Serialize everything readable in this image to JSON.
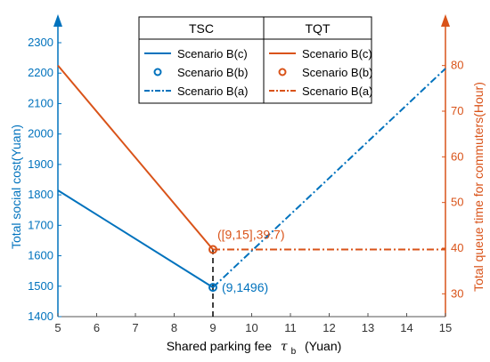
{
  "chart_data": {
    "type": "line",
    "xlabel": "Shared parking fee",
    "xlabel_symbol": "τ",
    "xlabel_sub": "b",
    "xlabel_unit": "(Yuan)",
    "ylabel_left": "Total social cost(Yuan)",
    "ylabel_right": "Total queue time for commuters(Hour)",
    "xlim": [
      5,
      15
    ],
    "ylim_left": [
      1400,
      2300
    ],
    "ylim_right": [
      25,
      85
    ],
    "xticks": [
      5,
      6,
      7,
      8,
      9,
      10,
      11,
      12,
      13,
      14,
      15
    ],
    "yticks_left": [
      1400,
      1500,
      1600,
      1700,
      1800,
      1900,
      2000,
      2100,
      2200,
      2300
    ],
    "yticks_right": [
      30,
      40,
      50,
      60,
      70,
      80
    ],
    "colors": {
      "tsc": "#0072bd",
      "tqt": "#d95319"
    },
    "legend": {
      "placement": "top-center",
      "tsc_header": "TSC",
      "tqt_header": "TQT",
      "entries": [
        "Scenario B(c)",
        "Scenario B(b)",
        "Scenario B(a)"
      ]
    },
    "series": [
      {
        "name": "Scenario B(c)",
        "group": "TSC",
        "axis": "left",
        "style": "solid",
        "x": [
          5,
          9
        ],
        "y": [
          1815,
          1496
        ]
      },
      {
        "name": "Scenario B(b)",
        "group": "TSC",
        "axis": "left",
        "style": "marker",
        "x": [
          9
        ],
        "y": [
          1496
        ]
      },
      {
        "name": "Scenario B(a)",
        "group": "TSC",
        "axis": "left",
        "style": "dashdot",
        "x": [
          9,
          15
        ],
        "y": [
          1496,
          2215
        ]
      },
      {
        "name": "Scenario B(c)",
        "group": "TQT",
        "axis": "right",
        "style": "solid",
        "x": [
          5,
          9
        ],
        "y": [
          80,
          39.7
        ]
      },
      {
        "name": "Scenario B(b)",
        "group": "TQT",
        "axis": "right",
        "style": "marker",
        "x": [
          9
        ],
        "y": [
          39.7
        ]
      },
      {
        "name": "Scenario B(a)",
        "group": "TQT",
        "axis": "right",
        "style": "dashdot",
        "x": [
          9,
          15
        ],
        "y": [
          39.7,
          39.7
        ]
      }
    ],
    "annotations": [
      {
        "text": "(9,1496)",
        "x": 9,
        "y": 1496,
        "axis": "left"
      },
      {
        "text": "([9,15],39.7)",
        "x": 9,
        "y": 39.7,
        "axis": "right"
      }
    ],
    "vline_x": 9
  }
}
